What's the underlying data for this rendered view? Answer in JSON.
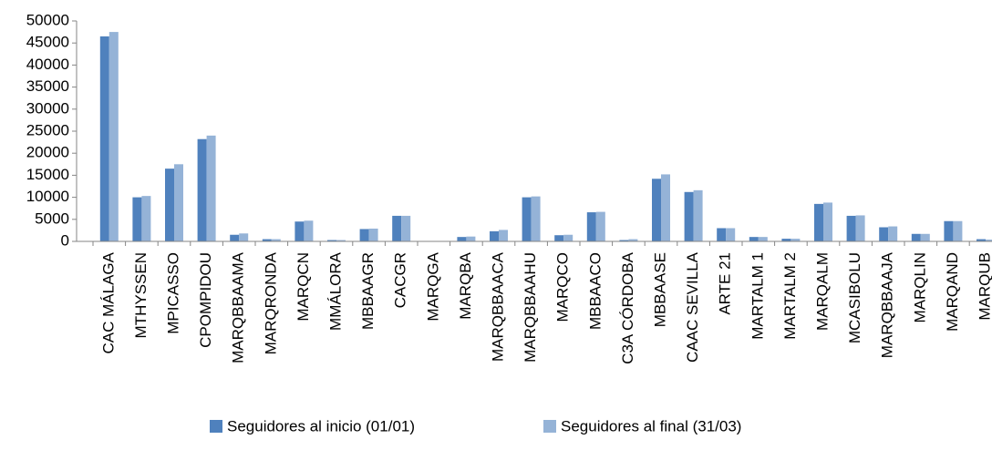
{
  "chart_data": {
    "type": "bar",
    "categories": [
      "CAC MÁLAGA",
      "MTHYSSEN",
      "MPICASSO",
      "CPOMPIDOU",
      "MARQBBAAMA",
      "MARQRONDA",
      "MARQCN",
      "MMÁLORA",
      "MBBAAGR",
      "CACGR",
      "MARQGA",
      "MARQBA",
      "MARQBBAACA",
      "MARQBBAAHU",
      "MARQCO",
      "MBBAACO",
      "C3A CÓRDOBA",
      "MBBAASE",
      "CAAC SEVILLA",
      "ARTE 21",
      "MARTALM 1",
      "MARTALM 2",
      "MARQALM",
      "MCASIBOLU",
      "MARQBBAAJA",
      "MARQLIN",
      "MARQAND",
      "MARQUB"
    ],
    "series": [
      {
        "name": "Seguidores al inicio (01/01)",
        "color": "#4f81bd",
        "values": [
          46500,
          10000,
          16500,
          23200,
          1500,
          500,
          4500,
          300,
          2800,
          5800,
          0,
          1000,
          2300,
          10000,
          1400,
          6600,
          300,
          14200,
          11200,
          3000,
          1000,
          600,
          8500,
          5800,
          3200,
          1700,
          4600,
          500
        ]
      },
      {
        "name": "Seguidores al final (31/03)",
        "color": "#95b3d7",
        "values": [
          47500,
          10300,
          17500,
          24000,
          1800,
          500,
          4700,
          300,
          2900,
          5800,
          0,
          1100,
          2600,
          10200,
          1500,
          6700,
          500,
          15200,
          11600,
          3000,
          1000,
          600,
          8800,
          5900,
          3400,
          1700,
          4600,
          400
        ]
      }
    ],
    "ylim": [
      0,
      50000
    ],
    "yticks": [
      0,
      5000,
      10000,
      15000,
      20000,
      25000,
      30000,
      35000,
      40000,
      45000,
      50000
    ],
    "grid": false,
    "legend": "bottom"
  }
}
